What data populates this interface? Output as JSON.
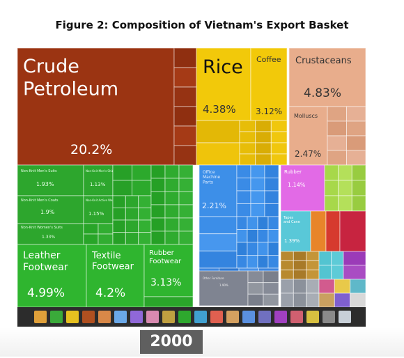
{
  "figure_title": "Figure 2: Composition of Vietnam's Export Basket",
  "year": "2000",
  "chart_data": {
    "type": "treemap",
    "tiles": [
      {
        "id": "crude",
        "label": "Crude\nPetroleum",
        "value": "20.2%",
        "color": "#9b3412"
      },
      {
        "id": "rice",
        "label": "Rice",
        "value": "4.38%",
        "color": "#f2c90a"
      },
      {
        "id": "coffee",
        "label": "Coffee",
        "value": "3.12%",
        "color": "#f2c90a"
      },
      {
        "id": "crustaceans",
        "label": "Crustaceans",
        "value": "4.83%",
        "color": "#e8ad8c"
      },
      {
        "id": "molluscs",
        "label": "Molluscs",
        "value": "2.47%",
        "color": "#e8ad8c"
      },
      {
        "id": "mens-suits",
        "label": "Non-Knit Men's Suits",
        "value": "1.93%",
        "color": "#2da62d"
      },
      {
        "id": "mens-shirts",
        "label": "Non-Knit Men's Shirts",
        "value": "1.13%",
        "color": "#2da62d"
      },
      {
        "id": "mens-coats",
        "label": "Non-Knit Men's Coats",
        "value": "1.9%",
        "color": "#2da62d"
      },
      {
        "id": "active-wear",
        "label": "Non-Knit Active Wear",
        "value": "1.15%",
        "color": "#2da62d"
      },
      {
        "id": "womens-suits",
        "label": "Non-Knit Women's Suits",
        "value": "1.33%",
        "color": "#2da62d"
      },
      {
        "id": "leather-footwear",
        "label": "Leather\nFootwear",
        "value": "4.99%",
        "color": "#2fb52f"
      },
      {
        "id": "textile-footwear",
        "label": "Textile\nFootwear",
        "value": "4.2%",
        "color": "#2fb52f"
      },
      {
        "id": "rubber-footwear",
        "label": "Rubber\nFootwear",
        "value": "3.13%",
        "color": "#2fb52f"
      },
      {
        "id": "office-machine-parts",
        "label": "Office\nMachine\nParts",
        "value": "2.21%",
        "color": "#3d8fe8"
      },
      {
        "id": "rubber",
        "label": "Rubber",
        "value": "1.14%",
        "color": "#e26ae6"
      },
      {
        "id": "tapes",
        "label": "Tapes\nand Cane",
        "value": "1.39%",
        "color": "#59c8d8"
      },
      {
        "id": "other-furniture",
        "label": "Other Furniture",
        "value": "1.90%",
        "color": "#7f8491"
      }
    ],
    "category_icons": [
      "animal-icon",
      "vegetable-icon",
      "foodstuff-icon",
      "mineral-icon",
      "chemical-icon",
      "plastic-icon",
      "hide-icon",
      "wood-icon",
      "paper-icon",
      "textile-icon",
      "footwear-icon",
      "stone-icon",
      "metal-icon",
      "machine-icon",
      "transport-icon",
      "instrument-icon",
      "weapon-icon",
      "misc-icon",
      "art-icon",
      "unknown-icon"
    ]
  }
}
